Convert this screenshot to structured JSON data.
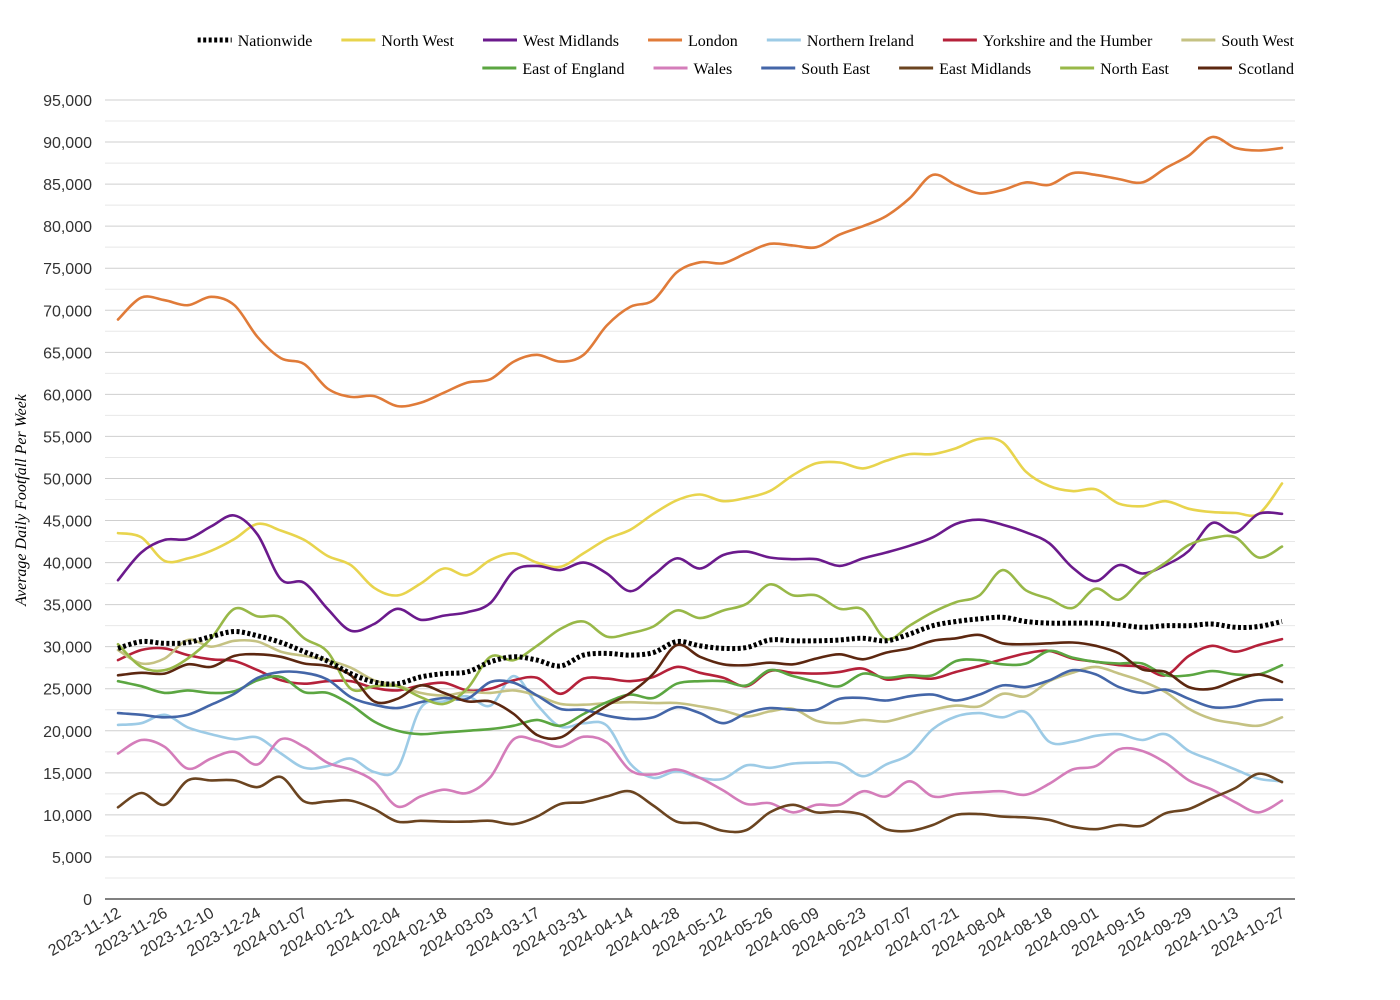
{
  "chart_data": {
    "type": "line",
    "title": "",
    "xlabel": "",
    "ylabel": "Average Daily Footfall Per Week",
    "ylim": [
      0,
      95000
    ],
    "ytick_values": [
      0,
      5000,
      10000,
      15000,
      20000,
      25000,
      30000,
      35000,
      40000,
      45000,
      50000,
      55000,
      60000,
      65000,
      70000,
      75000,
      80000,
      85000,
      90000,
      95000
    ],
    "ytick_labels": [
      "0",
      "5,000",
      "10,000",
      "15,000",
      "20,000",
      "25,000",
      "30,000",
      "35,000",
      "40,000",
      "45,000",
      "50,000",
      "55,000",
      "60,000",
      "65,000",
      "70,000",
      "75,000",
      "80,000",
      "85,000",
      "90,000",
      "95,000"
    ],
    "grid": "horizontal",
    "legend_position": "top",
    "x": [
      "2023-11-12",
      "2023-11-19",
      "2023-11-26",
      "2023-12-03",
      "2023-12-10",
      "2023-12-17",
      "2023-12-24",
      "2023-12-31",
      "2024-01-07",
      "2024-01-14",
      "2024-01-21",
      "2024-01-28",
      "2024-02-04",
      "2024-02-11",
      "2024-02-18",
      "2024-02-25",
      "2024-03-03",
      "2024-03-10",
      "2024-03-17",
      "2024-03-24",
      "2024-03-31",
      "2024-04-07",
      "2024-04-14",
      "2024-04-21",
      "2024-04-28",
      "2024-05-05",
      "2024-05-12",
      "2024-05-19",
      "2024-05-26",
      "2024-06-02",
      "2024-06-09",
      "2024-06-16",
      "2024-06-23",
      "2024-06-30",
      "2024-07-07",
      "2024-07-14",
      "2024-07-21",
      "2024-07-28",
      "2024-08-04",
      "2024-08-11",
      "2024-08-18",
      "2024-08-25",
      "2024-09-01",
      "2024-09-08",
      "2024-09-15",
      "2024-09-22",
      "2024-09-29",
      "2024-10-06",
      "2024-10-13",
      "2024-10-20",
      "2024-10-27"
    ],
    "x_tick_labels": [
      "2023-11-12",
      "2023-11-26",
      "2023-12-10",
      "2023-12-24",
      "2024-01-07",
      "2024-01-21",
      "2024-02-04",
      "2024-02-18",
      "2024-03-03",
      "2024-03-17",
      "2024-03-31",
      "2024-04-14",
      "2024-04-28",
      "2024-05-12",
      "2024-05-26",
      "2024-06-09",
      "2024-06-23",
      "2024-07-07",
      "2024-07-21",
      "2024-08-04",
      "2024-08-18",
      "2024-09-01",
      "2024-09-15",
      "2024-09-29",
      "2024-10-13",
      "2024-10-27"
    ],
    "series": [
      {
        "name": "Nationwide",
        "color": "#000000",
        "dashed": true,
        "values": [
          29800,
          30600,
          30400,
          30500,
          31200,
          31800,
          31300,
          30500,
          29400,
          28300,
          26800,
          25800,
          25600,
          26400,
          26800,
          27000,
          28200,
          28800,
          28400,
          27700,
          29000,
          29200,
          29000,
          29300,
          30600,
          30100,
          29800,
          29900,
          30800,
          30700,
          30700,
          30800,
          31000,
          30700,
          31500,
          32500,
          33000,
          33300,
          33500,
          33000,
          32800,
          32800,
          32800,
          32600,
          32300,
          32500,
          32500,
          32700,
          32300,
          32400,
          33000
        ]
      },
      {
        "name": "North West",
        "color": "#E8D44D",
        "values": [
          43500,
          43000,
          40200,
          40500,
          41400,
          42800,
          44600,
          43800,
          42700,
          40800,
          39700,
          37000,
          36100,
          37500,
          39300,
          38500,
          40300,
          41100,
          40000,
          39500,
          41100,
          42800,
          43900,
          45800,
          47400,
          48100,
          47300,
          47700,
          48500,
          50400,
          51800,
          51900,
          51200,
          52100,
          52900,
          52900,
          53600,
          54700,
          54300,
          50800,
          49100,
          48500,
          48700,
          47000,
          46700,
          47300,
          46400,
          46000,
          45900,
          45800,
          49400
        ]
      },
      {
        "name": "West Midlands",
        "color": "#6B1A8C",
        "values": [
          37900,
          41200,
          42700,
          42800,
          44300,
          45600,
          43300,
          38000,
          37600,
          34500,
          31900,
          32700,
          34500,
          33200,
          33700,
          34100,
          35200,
          39000,
          39600,
          39100,
          40000,
          38700,
          36600,
          38500,
          40500,
          39300,
          40900,
          41300,
          40600,
          40400,
          40400,
          39600,
          40500,
          41200,
          42000,
          43000,
          44600,
          45100,
          44500,
          43600,
          42300,
          39400,
          37800,
          39700,
          38700,
          39700,
          41400,
          44700,
          43600,
          45800,
          45800
        ]
      },
      {
        "name": "London",
        "color": "#E07B39",
        "values": [
          68900,
          71500,
          71200,
          70600,
          71600,
          70600,
          66800,
          64300,
          63600,
          60700,
          59700,
          59800,
          58600,
          59000,
          60200,
          61400,
          61800,
          63900,
          64700,
          63900,
          64700,
          68200,
          70400,
          71200,
          74500,
          75700,
          75600,
          76800,
          77900,
          77700,
          77500,
          79000,
          80000,
          81200,
          83300,
          86100,
          84900,
          83900,
          84300,
          85200,
          84900,
          86300,
          86100,
          85600,
          85200,
          86900,
          88400,
          90600,
          89300,
          89000,
          89300
        ]
      },
      {
        "name": "Northern Ireland",
        "color": "#9DCBE6",
        "values": [
          20700,
          20900,
          21900,
          20400,
          19600,
          19000,
          19200,
          17300,
          15600,
          15800,
          16700,
          15100,
          15500,
          22700,
          23500,
          24100,
          23000,
          26500,
          23100,
          20500,
          20900,
          20600,
          16100,
          14400,
          15200,
          14400,
          14300,
          15900,
          15600,
          16100,
          16200,
          16100,
          14600,
          16000,
          17200,
          20200,
          21700,
          22100,
          21600,
          22200,
          18700,
          18700,
          19400,
          19600,
          18900,
          19600,
          17600,
          16500,
          15400,
          14300,
          14000
        ]
      },
      {
        "name": "Yorkshire and the Humber",
        "color": "#B5213A",
        "values": [
          28400,
          29600,
          29800,
          29000,
          28500,
          28300,
          27200,
          26000,
          25600,
          25900,
          25900,
          25100,
          24800,
          25400,
          25700,
          24800,
          25000,
          26000,
          26300,
          24400,
          26200,
          26200,
          25900,
          26400,
          27600,
          26900,
          26300,
          25300,
          27100,
          26900,
          26800,
          27000,
          27400,
          26100,
          26400,
          26200,
          27000,
          27700,
          28500,
          29200,
          29500,
          28600,
          28200,
          27800,
          27600,
          26600,
          28900,
          30100,
          29400,
          30200,
          30900
        ]
      },
      {
        "name": "South West",
        "color": "#C5C283",
        "values": [
          29600,
          28000,
          28600,
          30800,
          30000,
          30700,
          30600,
          29400,
          28900,
          28400,
          27500,
          26000,
          25400,
          24500,
          24200,
          24600,
          24500,
          24800,
          24200,
          23200,
          23100,
          23300,
          23400,
          23300,
          23300,
          22900,
          22400,
          21700,
          22300,
          22600,
          21200,
          20900,
          21300,
          21100,
          21800,
          22500,
          23000,
          22900,
          24400,
          24100,
          25900,
          26900,
          27600,
          26800,
          25900,
          24600,
          22600,
          21400,
          20900,
          20600,
          21600
        ]
      },
      {
        "name": "East of England",
        "color": "#5BA641",
        "values": [
          25900,
          25300,
          24500,
          24800,
          24500,
          24700,
          26000,
          26400,
          24600,
          24500,
          23100,
          21100,
          20000,
          19600,
          19800,
          20000,
          20200,
          20600,
          21300,
          20600,
          22000,
          23400,
          24300,
          23900,
          25600,
          25900,
          25900,
          25400,
          27200,
          26500,
          25800,
          25300,
          26800,
          26300,
          26600,
          26600,
          28300,
          28400,
          27900,
          28000,
          29500,
          28700,
          28200,
          28000,
          28000,
          26600,
          26600,
          27100,
          26700,
          26700,
          27800
        ]
      },
      {
        "name": "Wales",
        "color": "#D47DBA",
        "values": [
          17300,
          18900,
          18100,
          15500,
          16700,
          17500,
          16000,
          19000,
          18100,
          16200,
          15400,
          14000,
          11000,
          12200,
          13000,
          12600,
          14500,
          19000,
          18800,
          18100,
          19300,
          18600,
          15300,
          14800,
          15400,
          14400,
          12900,
          11300,
          11400,
          10300,
          11200,
          11200,
          12800,
          12200,
          14000,
          12200,
          12500,
          12700,
          12800,
          12400,
          13700,
          15400,
          15800,
          17800,
          17600,
          16200,
          14100,
          13000,
          11500,
          10300,
          11700
        ]
      },
      {
        "name": "South East",
        "color": "#4466A8",
        "values": [
          22100,
          21900,
          21600,
          21900,
          23100,
          24400,
          26300,
          27000,
          26900,
          26100,
          24000,
          23100,
          22700,
          23400,
          23900,
          23800,
          25800,
          25700,
          24200,
          22600,
          22500,
          21800,
          21400,
          21600,
          22800,
          22100,
          20900,
          22100,
          22700,
          22500,
          22500,
          23800,
          23900,
          23600,
          24100,
          24300,
          23600,
          24300,
          25400,
          25200,
          26000,
          27200,
          26700,
          25200,
          24500,
          24900,
          23800,
          22800,
          22900,
          23600,
          23700
        ]
      },
      {
        "name": "East Midlands",
        "color": "#6B4420",
        "values": [
          10900,
          12600,
          11200,
          14100,
          14100,
          14100,
          13300,
          14500,
          11600,
          11600,
          11700,
          10700,
          9200,
          9300,
          9200,
          9200,
          9300,
          8900,
          9800,
          11300,
          11500,
          12200,
          12800,
          11100,
          9200,
          9000,
          8100,
          8200,
          10300,
          11200,
          10300,
          10400,
          10000,
          8300,
          8100,
          8800,
          10000,
          10100,
          9800,
          9700,
          9400,
          8600,
          8300,
          8800,
          8700,
          10200,
          10700,
          12000,
          13200,
          14900,
          13900
        ]
      },
      {
        "name": "North East",
        "color": "#98B848",
        "values": [
          30300,
          27600,
          27200,
          28600,
          31000,
          34500,
          33600,
          33500,
          31000,
          29400,
          25000,
          25300,
          25300,
          24000,
          23200,
          25000,
          28800,
          28400,
          30100,
          32100,
          33000,
          31200,
          31600,
          32400,
          34300,
          33400,
          34300,
          35100,
          37400,
          36100,
          36100,
          34500,
          34400,
          30900,
          32500,
          34100,
          35300,
          36100,
          39100,
          36700,
          35700,
          34600,
          36900,
          35600,
          38100,
          40000,
          42100,
          42900,
          43000,
          40600,
          41900
        ]
      },
      {
        "name": "Scotland",
        "color": "#5C2710",
        "values": [
          26600,
          26900,
          26800,
          27900,
          27600,
          28900,
          29100,
          28800,
          28000,
          27700,
          26600,
          23500,
          23800,
          25400,
          24500,
          23500,
          23500,
          22000,
          19500,
          19200,
          21200,
          23000,
          24500,
          26800,
          30200,
          28800,
          27900,
          27800,
          28100,
          27900,
          28600,
          29100,
          28500,
          29300,
          29800,
          30700,
          31000,
          31400,
          30400,
          30300,
          30400,
          30500,
          30100,
          29200,
          27300,
          27000,
          25200,
          25000,
          26000,
          26700,
          25800
        ]
      }
    ]
  }
}
